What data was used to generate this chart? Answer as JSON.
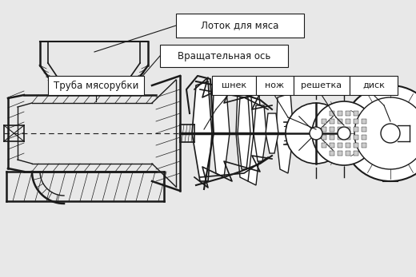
{
  "bg_color": "#ffffff",
  "fig_bg": "#e8e8e8",
  "labels": {
    "lotok": "Лоток для мяса",
    "vrash": "Вращательная ось",
    "truba": "Труба мясорубки",
    "shnek": "шнек",
    "nozh": "нож",
    "reshetka": "решетка",
    "disk": "диск"
  },
  "lc": "#1a1a1a",
  "bc": "#ffffff",
  "tc": "#1a1a1a",
  "hatch_color": "#555555",
  "fs": 8.5,
  "fs_small": 7.5
}
